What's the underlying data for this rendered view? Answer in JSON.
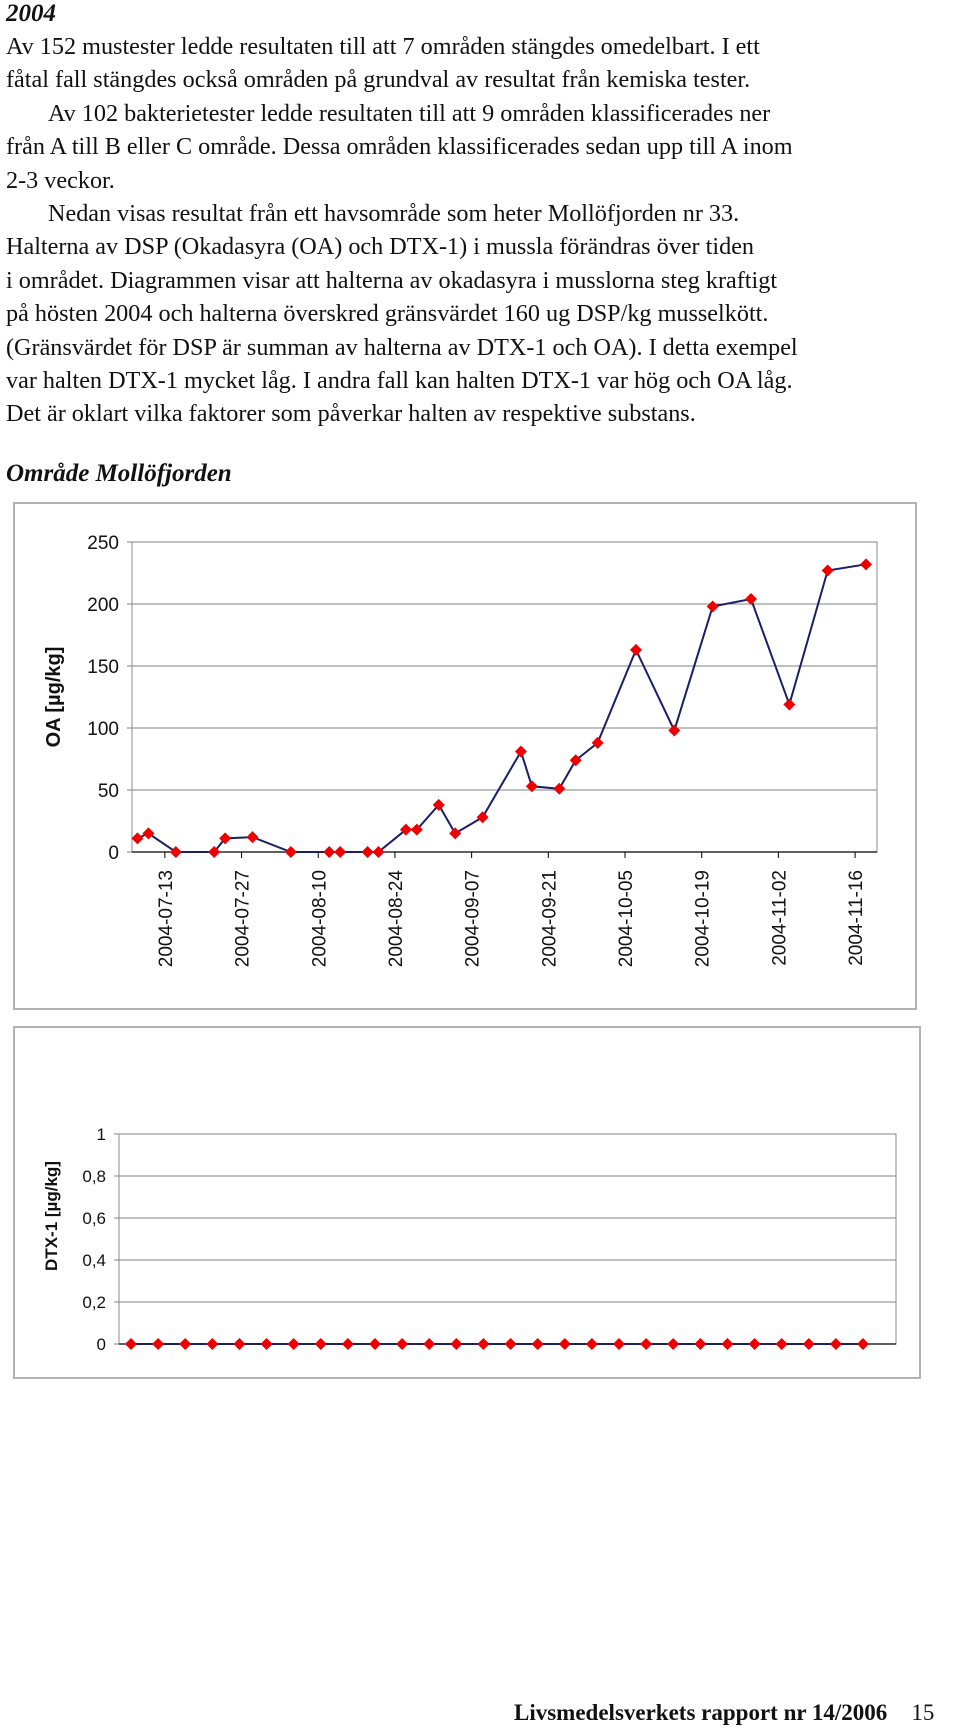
{
  "heading": "2004",
  "paragraphs": [
    {
      "indent": false,
      "lines": [
        "Av 152 mustester ledde resultaten till att 7 områden stängdes omedelbart. I ett",
        "fåtal fall stängdes också områden på grundval av resultat från kemiska tester."
      ]
    },
    {
      "indent": true,
      "lines": [
        "Av 102 bakterietester ledde resultaten till att 9 områden klassificerades ner"
      ]
    },
    {
      "indent": false,
      "lines": [
        "från A till B eller C område. Dessa områden klassificerades sedan upp till A inom",
        "2-3 veckor."
      ]
    },
    {
      "indent": true,
      "lines": [
        "Nedan visas resultat från ett havsområde som heter Mollöfjorden nr 33."
      ]
    },
    {
      "indent": false,
      "lines": [
        "Halterna av DSP (Okadasyra (OA) och DTX-1) i mussla förändras över tiden",
        "i området. Diagrammen visar att halterna av okadasyra i musslorna steg kraftigt",
        "på hösten 2004 och halterna överskred gränsvärdet 160 ug DSP/kg musselkött.",
        "(Gränsvärdet för DSP är summan av halterna av DTX-1 och OA). I detta exempel",
        "var halten DTX-1 mycket låg. I andra fall kan halten DTX-1 var hög och OA låg.",
        "Det är oklart vilka faktorer som påverkar halten av respektive substans."
      ]
    }
  ],
  "section_title": "Område Mollöfjorden",
  "chart_data": [
    {
      "type": "line",
      "title": "",
      "xlabel": "",
      "ylabel": "OA [µg/kg]",
      "ylim": [
        0,
        250
      ],
      "yticks": [
        0,
        50,
        100,
        150,
        200,
        250
      ],
      "ytick_labels": [
        "0",
        "50",
        "100",
        "150",
        "200",
        "250"
      ],
      "xlim": [
        "2004-07-07",
        "2004-11-20"
      ],
      "xtick_labels": [
        "2004-07-13",
        "2004-07-27",
        "2004-08-10",
        "2004-08-24",
        "2004-09-07",
        "2004-09-21",
        "2004-10-05",
        "2004-10-19",
        "2004-11-02",
        "2004-11-16"
      ],
      "grid": true,
      "legend": "none",
      "series": [
        {
          "color": "#1a1f66",
          "marker_color": "#ee0000",
          "x": [
            "2004-07-08",
            "2004-07-10",
            "2004-07-15",
            "2004-07-22",
            "2004-07-24",
            "2004-07-29",
            "2004-08-05",
            "2004-08-12",
            "2004-08-14",
            "2004-08-19",
            "2004-08-21",
            "2004-08-26",
            "2004-08-28",
            "2004-09-01",
            "2004-09-04",
            "2004-09-09",
            "2004-09-16",
            "2004-09-18",
            "2004-09-23",
            "2004-09-26",
            "2004-09-30",
            "2004-10-07",
            "2004-10-14",
            "2004-10-21",
            "2004-10-28",
            "2004-11-04",
            "2004-11-11",
            "2004-11-18"
          ],
          "y": [
            11,
            15,
            0,
            0,
            11,
            12,
            0,
            0,
            0,
            0,
            0,
            18,
            18,
            38,
            15,
            28,
            81,
            53,
            51,
            74,
            88,
            163,
            98,
            198,
            204,
            119,
            227,
            232
          ]
        }
      ]
    },
    {
      "type": "line",
      "title": "",
      "xlabel": "",
      "ylabel": "DTX-1 [µg/kg]",
      "ylim": [
        0,
        1
      ],
      "yticks": [
        0,
        0.2,
        0.4,
        0.6,
        0.8,
        1
      ],
      "ytick_labels": [
        "0",
        "0,2",
        "0,4",
        "0,6",
        "0,8",
        "1"
      ],
      "grid": true,
      "legend": "none",
      "series": [
        {
          "color": "#1a1f66",
          "marker_color": "#ee0000",
          "y": [
            0,
            0,
            0,
            0,
            0,
            0,
            0,
            0,
            0,
            0,
            0,
            0,
            0,
            0,
            0,
            0,
            0,
            0,
            0,
            0,
            0,
            0,
            0,
            0,
            0,
            0,
            0,
            0
          ]
        }
      ]
    }
  ],
  "footer": {
    "report": "Livsmedelsverkets rapport nr 14/2006",
    "page": "15"
  }
}
